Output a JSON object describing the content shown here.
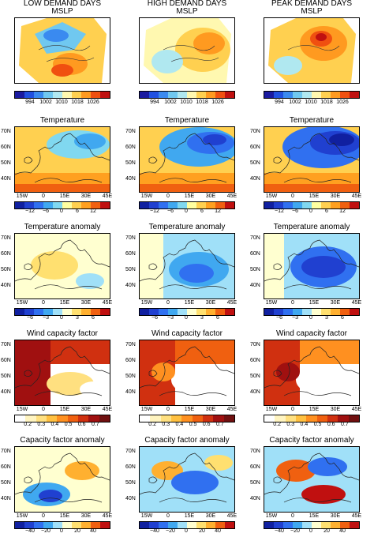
{
  "columns": [
    {
      "line1": "LOW DEMAND DAYS",
      "line2": "MSLP"
    },
    {
      "line1": "HIGH DEMAND DAYS",
      "line2": "MSLP"
    },
    {
      "line1": "PEAK DEMAND DAYS",
      "line2": "MSLP"
    }
  ],
  "row_titles": [
    "Temperature",
    "Temperature anomaly",
    "Wind capacity factor",
    "Capacity factor anomaly"
  ],
  "lat_labels": [
    "70N",
    "60N",
    "50N",
    "40N"
  ],
  "lon_labels": [
    "15W",
    "0",
    "15E",
    "30E",
    "45E"
  ],
  "colorbars": {
    "mslp": {
      "ticks": [
        "994",
        "1002",
        "1010",
        "1018",
        "1026"
      ],
      "colors": [
        "#1a1aa0",
        "#2050e0",
        "#3a8af0",
        "#70c8f0",
        "#b0e8f0",
        "#fff8b0",
        "#ffd050",
        "#ff9a20",
        "#f05010",
        "#c01010"
      ]
    },
    "temperature": {
      "ticks": [
        "−12",
        "−6",
        "0",
        "6",
        "12"
      ],
      "colors": [
        "#1020a0",
        "#2040d0",
        "#3070f0",
        "#40a8f0",
        "#80d8f0",
        "#ffffa0",
        "#ffd050",
        "#ffa020",
        "#f06010",
        "#c01010"
      ]
    },
    "temperature_anomaly": {
      "ticks": [
        "−6",
        "−3",
        "0",
        "3",
        "6"
      ],
      "colors": [
        "#1020a0",
        "#2040d0",
        "#3070f0",
        "#40a8f0",
        "#a0e0f8",
        "#ffffd0",
        "#ffe070",
        "#ffb030",
        "#f06010",
        "#c01010"
      ]
    },
    "wind_cf": {
      "ticks": [
        "0.2",
        "0.3",
        "0.4",
        "0.5",
        "0.6",
        "0.7"
      ],
      "colors": [
        "#ffffff",
        "#fff4c0",
        "#ffe080",
        "#ffc040",
        "#ff9020",
        "#f06010",
        "#d03010",
        "#a01010",
        "#701010"
      ]
    },
    "cf_anomaly": {
      "ticks": [
        "−40",
        "−20",
        "0",
        "20",
        "40"
      ],
      "colors": [
        "#1020a0",
        "#2040d0",
        "#3070f0",
        "#40a8f0",
        "#a0e0f8",
        "#ffffd0",
        "#ffe070",
        "#ffb030",
        "#f06010",
        "#c01010"
      ]
    }
  }
}
